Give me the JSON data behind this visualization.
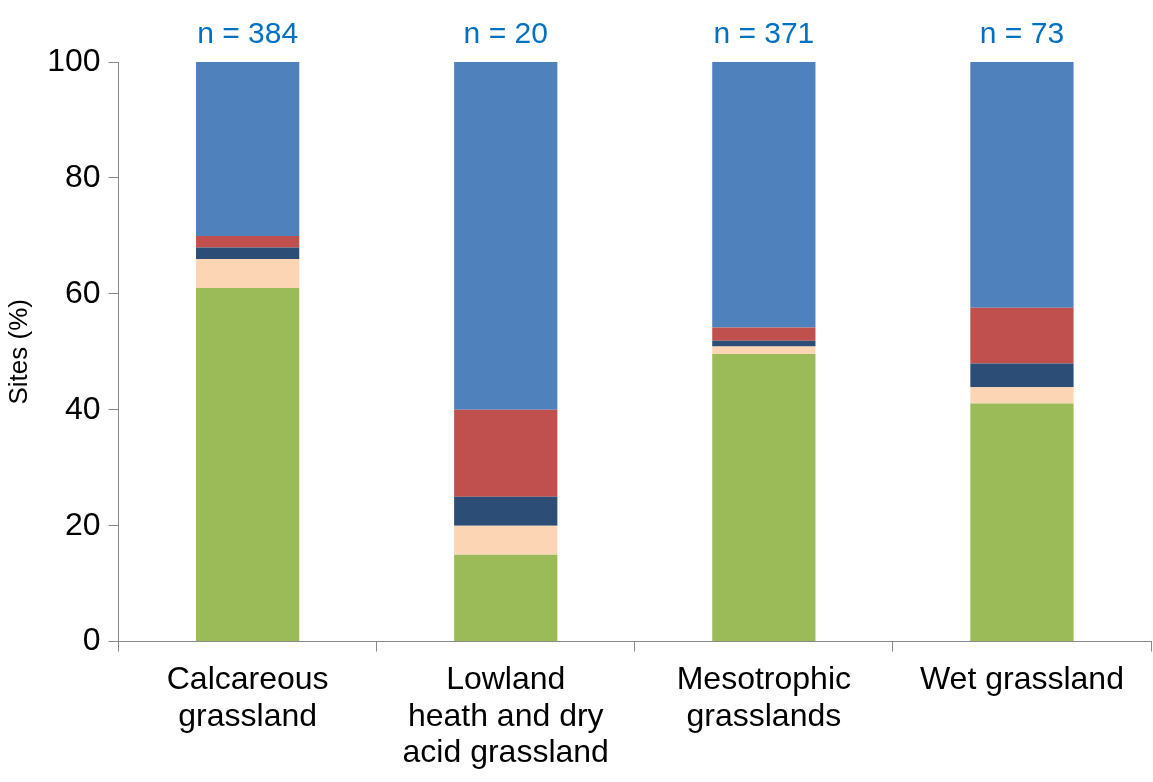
{
  "chart_data": {
    "type": "bar",
    "stacked": true,
    "ylabel": "Sites (%)",
    "categories": [
      "Calcareous\ngrassland",
      "Lowland\nheath and dry\nacid grassland",
      "Mesotrophic\ngrasslands",
      "Wet grassland"
    ],
    "series": [
      {
        "color": "#9bbb59",
        "values": [
          61,
          15,
          49.6,
          41.1
        ]
      },
      {
        "color": "#fcd5b5",
        "values": [
          5,
          5,
          1.3,
          2.8
        ]
      },
      {
        "color": "#2c4d75",
        "values": [
          2,
          5,
          1,
          4.1
        ]
      },
      {
        "color": "#c0504d",
        "values": [
          2,
          15,
          2.3,
          9.6
        ]
      },
      {
        "color": "#4f81bd",
        "values": [
          30,
          60,
          45.8,
          42.4
        ]
      }
    ],
    "ylim": [
      0,
      100
    ],
    "yticks": [
      0,
      20,
      40,
      60,
      80,
      100
    ],
    "grid": false,
    "legend": false,
    "annotations": [
      {
        "text": "n = 384",
        "x": "Calcareous\ngrassland",
        "y": 100
      },
      {
        "text": "n = 20",
        "x": "Lowland\nheath and dry\nacid grassland",
        "y": 100
      },
      {
        "text": "n = 371",
        "x": "Mesotrophic\ngrasslands",
        "y": 100
      },
      {
        "text": "n = 73",
        "x": "Wet grassland",
        "y": 100
      }
    ]
  }
}
